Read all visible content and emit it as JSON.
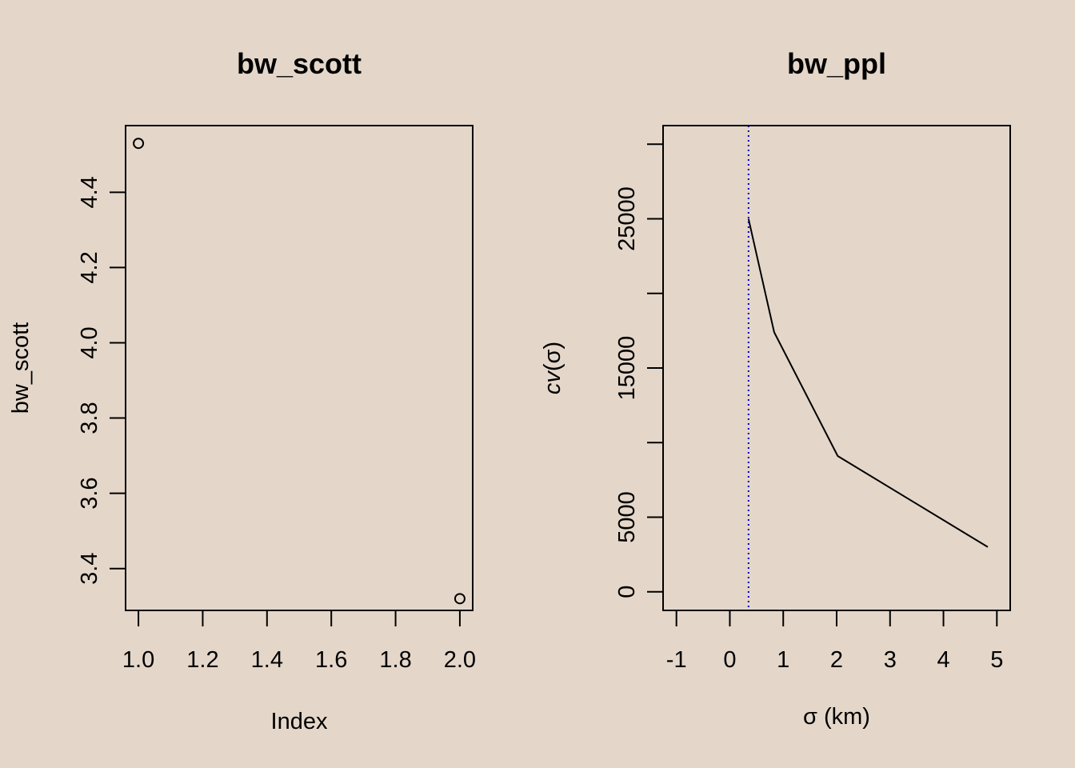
{
  "background": "#E4D7CA",
  "chart_data": [
    {
      "type": "scatter",
      "title": "bw_scott",
      "xlabel": "Index",
      "ylabel": "bw_scott",
      "xlim": [
        0.96,
        2.04
      ],
      "ylim": [
        3.2888,
        4.5772
      ],
      "x_ticks": [
        1.0,
        1.2,
        1.4,
        1.6,
        1.8,
        2.0
      ],
      "x_tick_labels": [
        "1.0",
        "1.2",
        "1.4",
        "1.6",
        "1.8",
        "2.0"
      ],
      "y_ticks": [
        3.4,
        3.6,
        3.8,
        4.0,
        4.2,
        4.4
      ],
      "y_tick_labels": [
        "3.4",
        "3.6",
        "3.8",
        "4.0",
        "4.2",
        "4.4"
      ],
      "marker": "open-circle",
      "points": [
        {
          "x": 1,
          "y": 4.53
        },
        {
          "x": 2,
          "y": 3.32
        }
      ]
    },
    {
      "type": "line",
      "title": "bw_ppl",
      "xlabel": "σ (km)",
      "ylabel_prefix": "cv",
      "ylabel_arg": "σ",
      "xlim": [
        -1.25,
        5.25
      ],
      "ylim": [
        -1250,
        31250
      ],
      "x_ticks": [
        -1,
        0,
        1,
        2,
        3,
        4,
        5
      ],
      "x_tick_labels": [
        "-1",
        "0",
        "1",
        "2",
        "3",
        "4",
        "5"
      ],
      "y_ticks": [
        0,
        5000,
        10000,
        15000,
        20000,
        25000,
        30000
      ],
      "y_tick_labels": [
        "0",
        "5000",
        "",
        "15000",
        "",
        "25000",
        ""
      ],
      "series": [
        {
          "color": "#000000",
          "points": [
            {
              "x": 0.35,
              "y": 25000
            },
            {
              "x": 0.83,
              "y": 17400
            },
            {
              "x": 2.02,
              "y": 9100
            },
            {
              "x": 4.83,
              "y": 3000
            }
          ]
        }
      ],
      "vline": {
        "x": 0.35,
        "color": "#0000CC",
        "style": "dotted"
      }
    }
  ]
}
